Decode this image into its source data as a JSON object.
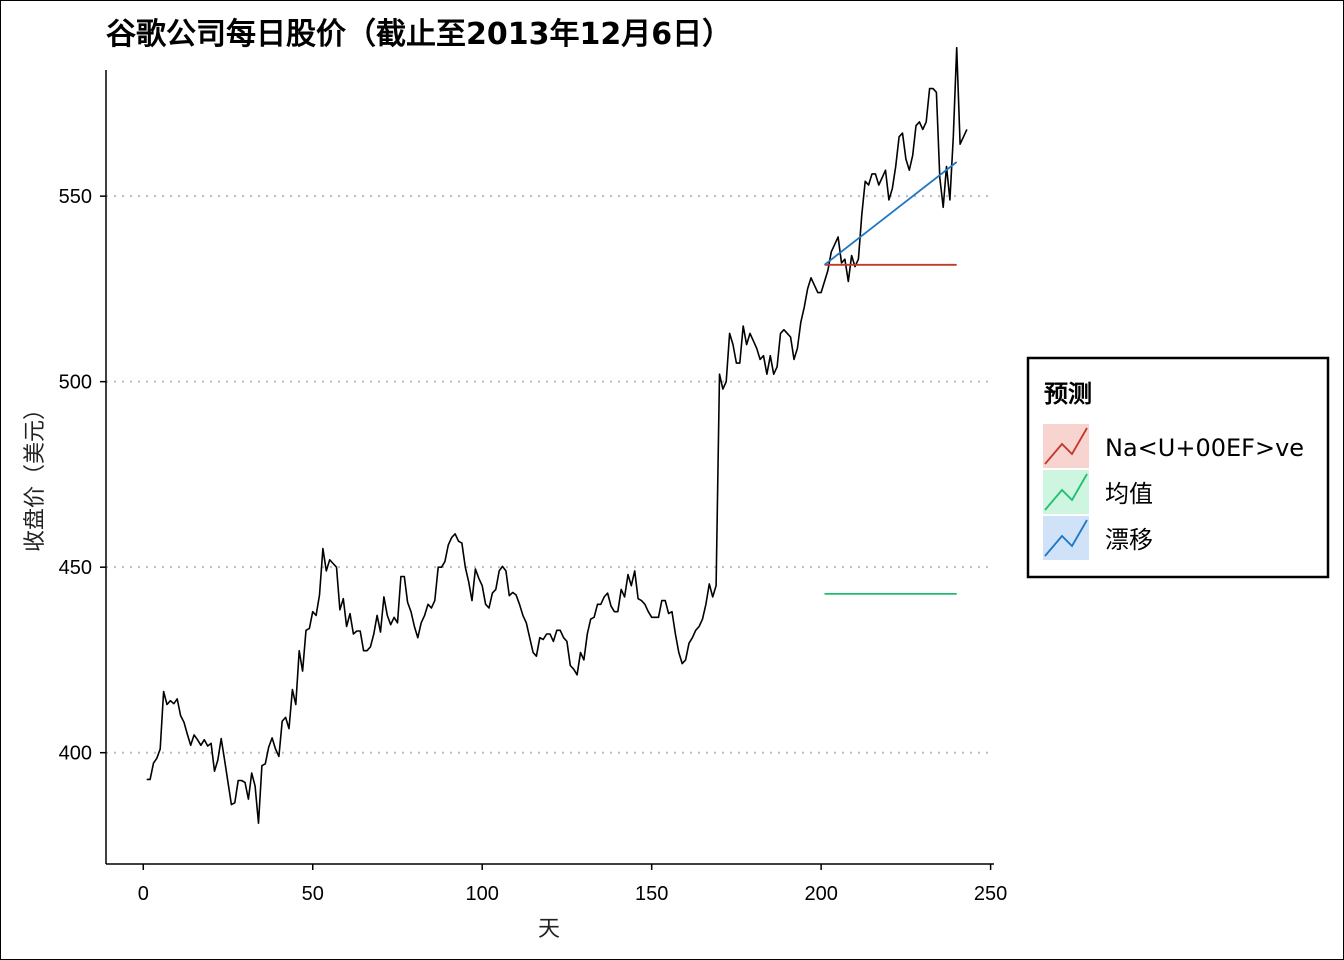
{
  "chart_data": {
    "type": "line",
    "title": "谷歌公司每日股价（截止至2013年12月6日）",
    "xlabel": "天",
    "ylabel": "收盘价（美元）",
    "xlim": [
      -11,
      251
    ],
    "ylim": [
      370,
      584
    ],
    "xticks": [
      "0",
      "50",
      "100",
      "150",
      "200",
      "250"
    ],
    "yticks": [
      "400",
      "450",
      "500",
      "550"
    ],
    "grid": "horizontal-dotted",
    "legend": {
      "title": "预测",
      "placement": "right",
      "entries": [
        {
          "label": "Na<U+00EF>ve",
          "color": "#c0392b",
          "fill": "#f7d4d0"
        },
        {
          "label": "均值",
          "color": "#1fbf6f",
          "fill": "#cdf5df"
        },
        {
          "label": "漂移",
          "color": "#1f77c4",
          "fill": "#cfe2f7"
        }
      ]
    },
    "series": [
      {
        "name": "收盘价",
        "color": "#000000",
        "x_start": 1,
        "values": [
          392.8,
          392.8,
          397.2,
          398.5,
          401,
          416.5,
          413,
          414,
          413.2,
          414.5,
          410,
          408.2,
          405,
          402,
          404.8,
          403.5,
          402,
          403.5,
          401.8,
          402.5,
          395,
          398,
          403.8,
          398,
          392,
          386,
          386.5,
          392.5,
          392.5,
          392,
          387.5,
          394.5,
          391,
          381,
          396.5,
          397,
          401.5,
          404,
          401,
          399,
          408.5,
          409.5,
          406.5,
          417,
          413,
          427.5,
          422,
          433,
          433.5,
          438,
          437,
          442.5,
          455,
          449,
          452,
          451,
          450,
          438.5,
          441.5,
          434,
          437.5,
          432,
          432.8,
          432.8,
          427.5,
          427.5,
          428.5,
          432,
          437,
          432.5,
          442,
          437,
          434.5,
          436.5,
          435,
          447.5,
          447.5,
          440.5,
          438,
          434,
          431,
          435,
          437,
          440,
          439,
          441,
          450,
          450,
          451.5,
          456,
          458,
          459,
          457,
          456.5,
          450,
          446,
          441,
          449.5,
          447,
          445,
          440,
          439,
          443,
          444,
          449,
          450.2,
          449,
          442.3,
          443.2,
          442.5,
          440,
          437,
          435,
          431,
          427,
          426,
          431,
          430.5,
          432,
          432,
          430,
          433,
          433,
          431,
          430,
          423.5,
          422.5,
          421,
          427,
          425,
          432,
          436,
          436.5,
          440,
          440,
          442,
          443,
          439.5,
          438,
          438,
          444,
          442,
          448,
          445,
          449,
          441.5,
          441,
          440,
          438,
          436.5,
          436.5,
          436.5,
          441,
          441,
          437.5,
          438,
          432,
          427,
          424,
          425,
          429.5,
          431,
          433,
          434,
          436,
          440,
          445.5,
          442,
          445,
          502,
          498,
          500,
          513,
          510,
          505,
          505,
          515,
          510,
          513,
          511,
          509,
          506,
          507,
          502,
          507,
          502,
          504,
          513,
          514,
          513,
          512,
          506,
          509,
          516,
          520,
          525,
          528,
          526,
          524,
          524,
          527,
          530,
          535,
          537,
          539,
          532,
          533,
          527,
          534,
          531,
          533,
          545,
          554,
          553,
          556,
          556,
          553,
          555,
          557,
          549,
          552,
          558,
          566,
          567,
          560,
          557,
          561,
          569,
          570,
          568,
          570,
          579,
          579,
          578,
          555,
          547,
          558,
          549,
          566,
          590,
          564,
          566,
          568
        ]
      },
      {
        "name": "Na<U+00EF>ve",
        "color": "#c0392b",
        "x": [
          201,
          240
        ],
        "values": [
          531.5,
          531.5
        ]
      },
      {
        "name": "均值",
        "color": "#1fbf6f",
        "x": [
          201,
          240
        ],
        "values": [
          442.8,
          442.8
        ]
      },
      {
        "name": "漂移",
        "color": "#1f77c4",
        "x": [
          201,
          240
        ],
        "values": [
          531.5,
          559.2
        ]
      }
    ]
  }
}
